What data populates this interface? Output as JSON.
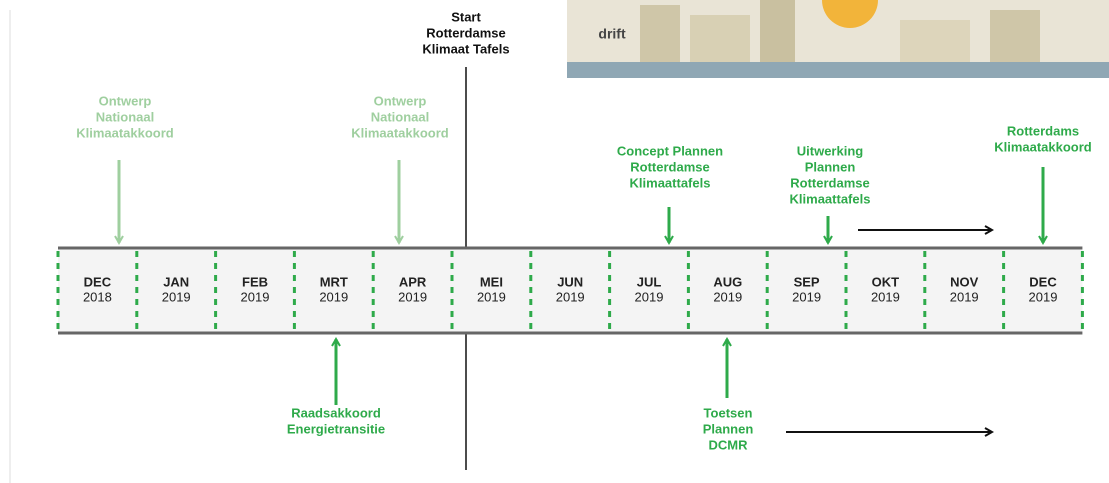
{
  "header": {
    "brand": "drift"
  },
  "milestone": {
    "lines": [
      "Start",
      "Rotterdamse",
      "Klimaat Tafels"
    ]
  },
  "months": [
    {
      "month": "DEC",
      "year": "2018"
    },
    {
      "month": "JAN",
      "year": "2019"
    },
    {
      "month": "FEB",
      "year": "2019"
    },
    {
      "month": "MRT",
      "year": "2019"
    },
    {
      "month": "APR",
      "year": "2019"
    },
    {
      "month": "MEI",
      "year": "2019"
    },
    {
      "month": "JUN",
      "year": "2019"
    },
    {
      "month": "JUL",
      "year": "2019"
    },
    {
      "month": "AUG",
      "year": "2019"
    },
    {
      "month": "SEP",
      "year": "2019"
    },
    {
      "month": "OKT",
      "year": "2019"
    },
    {
      "month": "NOV",
      "year": "2019"
    },
    {
      "month": "DEC",
      "year": "2019"
    }
  ],
  "above": [
    {
      "lines": [
        "Ontwerp",
        "Nationaal",
        "Klimaatakkoord"
      ]
    },
    {
      "lines": [
        "Ontwerp",
        "Nationaal",
        "Klimaatakkoord"
      ]
    },
    {
      "lines": [
        "Concept Plannen",
        "Rotterdamse",
        "Klimaattafels"
      ]
    },
    {
      "lines": [
        "Uitwerking",
        "Plannen",
        "Rotterdamse",
        "Klimaattafels"
      ]
    },
    {
      "lines": [
        "Rotterdams",
        "Klimaatakkoord"
      ]
    }
  ],
  "below": [
    {
      "lines": [
        "Raadsakkoord",
        "Energietransitie"
      ]
    },
    {
      "lines": [
        "Toetsen",
        "Plannen",
        "DCMR"
      ]
    }
  ]
}
